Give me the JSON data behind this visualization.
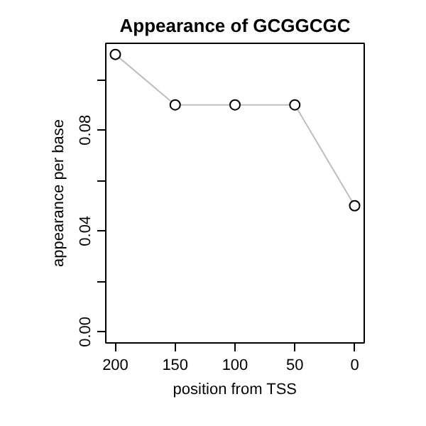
{
  "chart_data": {
    "type": "line",
    "title": "Appearance of GCGGCGC",
    "xlabel": "position from TSS",
    "ylabel": "appearance per base",
    "x": [
      200,
      150,
      100,
      50,
      0
    ],
    "series": [
      {
        "color": "#bebebe",
        "values": [
          0.11,
          0.09,
          0.09,
          0.09,
          0.05
        ]
      }
    ],
    "xlim": [
      208,
      -8
    ],
    "ylim": [
      -0.0044,
      0.1144
    ],
    "xticks": [
      200,
      150,
      100,
      50,
      0
    ],
    "yticks": [
      {
        "value": 0,
        "label": "0.00"
      },
      {
        "value": 0.02,
        "label": null
      },
      0.04,
      {
        "value": 0.06,
        "label": null
      },
      0.08,
      {
        "value": 0.1,
        "label": null
      }
    ],
    "marker": "circle",
    "grid": false
  }
}
